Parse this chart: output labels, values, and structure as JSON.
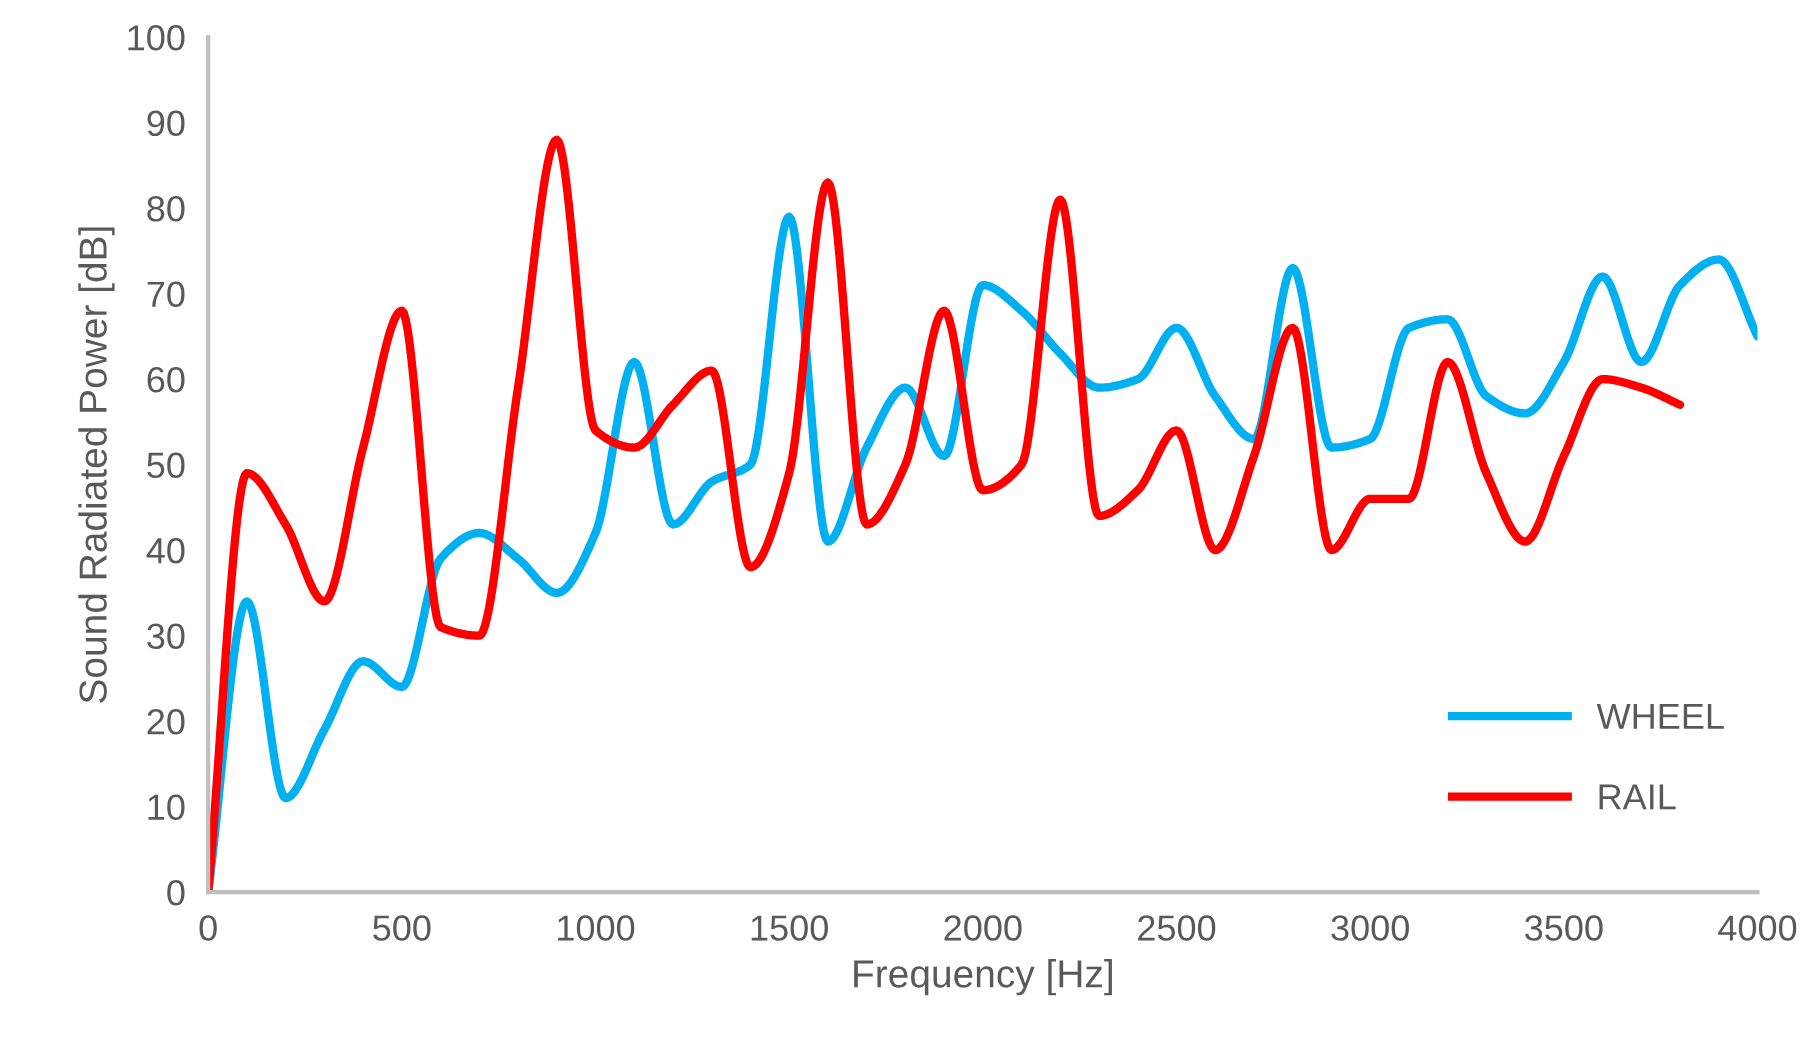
{
  "chart_data": {
    "type": "line",
    "xlabel": "Frequency [Hz]",
    "ylabel": "Sound Radiated Power [dB]",
    "xlim": [
      0,
      4000
    ],
    "xticks": [
      0,
      500,
      1000,
      1500,
      2000,
      2500,
      3000,
      3500,
      4000
    ],
    "ylim": [
      0,
      100
    ],
    "yticks": [
      0,
      10,
      20,
      30,
      40,
      50,
      60,
      70,
      80,
      90,
      100
    ],
    "grid": false,
    "legend": "bottom right",
    "marker": "none",
    "line_style": "solid",
    "series": [
      {
        "name": "WHEEL",
        "color": "#00b0f0",
        "x": [
          0,
          100,
          200,
          300,
          400,
          500,
          600,
          700,
          800,
          900,
          1000,
          1100,
          1200,
          1300,
          1400,
          1500,
          1600,
          1700,
          1800,
          1900,
          2000,
          2100,
          2200,
          2300,
          2400,
          2500,
          2600,
          2700,
          2800,
          2900,
          3000,
          3100,
          3200,
          3300,
          3400,
          3500,
          3600,
          3700,
          3800,
          3900,
          4000
        ],
        "values": [
          0,
          34,
          11,
          19,
          27,
          24,
          39,
          42,
          39,
          35,
          42,
          62,
          43,
          48,
          50,
          79,
          41,
          52,
          59,
          51,
          71,
          68,
          63,
          59,
          60,
          66,
          58,
          53,
          73,
          52,
          53,
          66,
          67,
          58,
          56,
          62,
          72,
          62,
          71,
          74,
          65
        ]
      },
      {
        "name": "RAIL",
        "color": "#ff0000",
        "x": [
          0,
          100,
          200,
          300,
          400,
          500,
          600,
          700,
          800,
          900,
          1000,
          1100,
          1200,
          1300,
          1400,
          1500,
          1600,
          1700,
          1800,
          1900,
          2000,
          2100,
          2200,
          2300,
          2400,
          2500,
          2600,
          2700,
          2800,
          2900,
          3000,
          3100,
          3200,
          3300,
          3400,
          3500,
          3600,
          3700,
          3800
        ],
        "values": [
          0,
          49,
          43,
          34,
          52,
          68,
          31,
          30,
          59,
          88,
          54,
          52,
          57,
          61,
          38,
          49,
          83,
          43,
          50,
          68,
          47,
          50,
          81,
          44,
          47,
          54,
          40,
          51,
          66,
          40,
          46,
          46,
          62,
          49,
          41,
          51,
          60,
          59,
          57
        ]
      }
    ]
  }
}
